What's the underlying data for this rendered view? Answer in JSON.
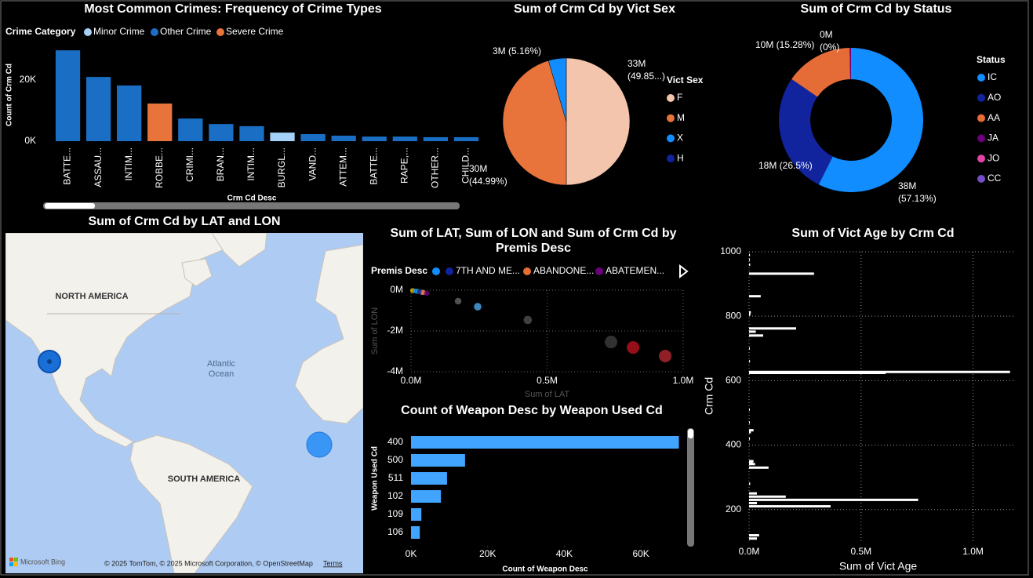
{
  "chart_data": [
    {
      "type": "bar",
      "title": "Most Common Crimes: Frequency of Crime Types",
      "legend_title": "Crime Category",
      "x_label": "Crm Cd Desc",
      "y_label": "Count of Crm Cd",
      "categories": [
        "BATTE...",
        "ASSAU...",
        "INTIM...",
        "ROBBE...",
        "CRIMI...",
        "BRAN...",
        "INTIM...",
        "BURGL...",
        "VAND...",
        "ATTEM...",
        "BATTE...",
        "RAPE,...",
        "OTHER...",
        "CHILD..."
      ],
      "series": [
        {
          "name": "Minor Crime",
          "color": "#a6d1f7",
          "values": [
            null,
            null,
            null,
            null,
            null,
            null,
            null,
            2800,
            null,
            null,
            null,
            null,
            null,
            null
          ]
        },
        {
          "name": "Other Crime",
          "color": "#1a6fc4",
          "values": [
            29700,
            21000,
            18200,
            null,
            7400,
            5600,
            4900,
            null,
            2300,
            1800,
            1500,
            1500,
            1300,
            1300
          ]
        },
        {
          "name": "Severe Crime",
          "color": "#e8743b",
          "values": [
            null,
            null,
            null,
            12300,
            null,
            null,
            null,
            null,
            null,
            null,
            null,
            null,
            null,
            null
          ]
        }
      ],
      "ylim": [
        0,
        30000
      ],
      "yticks": [
        {
          "value": 0,
          "label": "0K"
        },
        {
          "value": 20000,
          "label": "20K"
        }
      ],
      "grid": false
    },
    {
      "type": "pie",
      "title": "Sum of Crm Cd by Vict Sex",
      "legend_title": "Vict Sex",
      "categories": [
        "F",
        "M",
        "X",
        "H"
      ],
      "colors": [
        "#f4c5ad",
        "#e8743b",
        "#118dff",
        "#12239e"
      ],
      "values": [
        33000000,
        30000000,
        3000000,
        0
      ],
      "value_labels": [
        "33M (49.85...)",
        "30M (44.99%)",
        "3M (5.16%)",
        null
      ]
    },
    {
      "type": "donut",
      "title": "Sum of Crm Cd by Status",
      "legend_title": "Status",
      "categories": [
        "IC",
        "AO",
        "AA",
        "JA",
        "JO",
        "CC"
      ],
      "colors": [
        "#118dff",
        "#12239e",
        "#e66c37",
        "#6b007b",
        "#e044a7",
        "#744ec2"
      ],
      "values": [
        38000000,
        18000000,
        10000000,
        200000,
        0,
        0
      ],
      "value_labels": [
        "38M (57.13%)",
        "18M (26.5%)",
        "10M (15.28%)",
        "0M (0%)",
        null,
        null
      ]
    },
    {
      "type": "scatter",
      "title": "Sum of LAT, Sum of LON and Sum of Crm Cd by Premis Desc",
      "legend_title": "Premis Desc",
      "x_label": "Sum of LAT",
      "y_label": "Sum of LON",
      "series": [
        {
          "name": null,
          "color": "#118dff",
          "x": [
            17000
          ],
          "values": [
            -40000
          ],
          "sizes": [
            280000
          ]
        },
        {
          "name": "7TH AND ME...",
          "color": "#12239e",
          "x": [
            32000
          ],
          "values": [
            -77000
          ],
          "sizes": [
            280000
          ]
        },
        {
          "name": "ABANDONE...",
          "color": "#e66c37",
          "x": [
            46000
          ],
          "values": [
            -115000
          ],
          "sizes": [
            280000
          ]
        },
        {
          "name": "ABATEMEN...",
          "color": "#6b007b",
          "x": [
            58000
          ],
          "values": [
            -154000
          ],
          "sizes": [
            280000
          ]
        }
      ],
      "points": {
        "x": [
          6000,
          26000,
          40000,
          173000,
          245000,
          429000,
          735000,
          816000,
          934000
        ],
        "values": [
          -20000,
          -60000,
          -100000,
          -540000,
          -810000,
          -1460000,
          -2540000,
          -2810000,
          -3230000
        ],
        "sizes": [
          280000,
          280000,
          280000,
          500000,
          630000,
          780000,
          1760000,
          1760000,
          1760000
        ],
        "colors": [
          "#d9b300",
          "#5aa830",
          "#c9c9c9",
          "#5f5f5f",
          "#4a9fe0",
          "#4b4b4b",
          "#3a3a3a",
          "#b0101c",
          "#a8262e"
        ]
      },
      "xlim": [
        0,
        1000000
      ],
      "xticks": [
        {
          "value": 0,
          "label": "0.0M"
        },
        {
          "value": 500000,
          "label": "0.5M"
        },
        {
          "value": 1000000,
          "label": "1.0M"
        }
      ],
      "ylim": [
        -4000000,
        0
      ],
      "yticks": [
        {
          "value": 0,
          "label": "0M"
        },
        {
          "value": -2000000,
          "label": "-2M"
        },
        {
          "value": -4000000,
          "label": "-4M"
        }
      ],
      "grid": true
    },
    {
      "type": "bar",
      "horizontal": true,
      "title": "Count of Weapon Desc by Weapon Used Cd",
      "x_label": "Count of Weapon Desc",
      "y_label": "Weapon Used Cd",
      "categories": [
        "400",
        "500",
        "511",
        "102",
        "109",
        "106"
      ],
      "color": "#41a4ff",
      "values": [
        69900,
        14100,
        9400,
        7800,
        2700,
        2300
      ],
      "xlim": [
        0,
        70000
      ],
      "xticks": [
        {
          "value": 0,
          "label": "0K"
        },
        {
          "value": 20000,
          "label": "20K"
        },
        {
          "value": 40000,
          "label": "40K"
        },
        {
          "value": 60000,
          "label": "60K"
        }
      ],
      "grid": false
    },
    {
      "type": "bar",
      "horizontal": true,
      "title": "Sum of Vict Age by Crm Cd",
      "x_label": "Sum of Vict Age",
      "y_label": "Crm Cd",
      "color": "#ffffff",
      "x": [
        990,
        975,
        960,
        932,
        862,
        812,
        805,
        762,
        752,
        740,
        700,
        660,
        627,
        624,
        510,
        470,
        446,
        440,
        420,
        350,
        345,
        341,
        330,
        280,
        250,
        240,
        230,
        220,
        210,
        120,
        110
      ],
      "values": [
        4000,
        3000,
        5000,
        290000,
        52000,
        8000,
        6000,
        210000,
        30000,
        63000,
        3000,
        4000,
        1165000,
        610000,
        2000,
        3000,
        20000,
        8000,
        4000,
        20000,
        17000,
        27000,
        87000,
        5000,
        35000,
        164000,
        755000,
        35000,
        364000,
        45000,
        35000
      ],
      "ylim": [
        80,
        1000
      ],
      "yticks": [
        200,
        400,
        600,
        800,
        1000
      ],
      "xlim": [
        0,
        1180000
      ],
      "xticks": [
        {
          "value": 0,
          "label": "0.0M"
        },
        {
          "value": 500000,
          "label": "0.5M"
        },
        {
          "value": 1000000,
          "label": "1.0M"
        }
      ],
      "grid": true
    }
  ],
  "map": {
    "title": "Sum of Crm Cd by LAT and LON",
    "labels": [
      "NORTH AMERICA",
      "SOUTH AMERICA",
      "Atlantic Ocean"
    ],
    "attribution": "© 2025 TomTom, © 2025 Microsoft Corporation, © OpenStreetMap",
    "terms": "Terms",
    "logo": "Microsoft Bing"
  }
}
